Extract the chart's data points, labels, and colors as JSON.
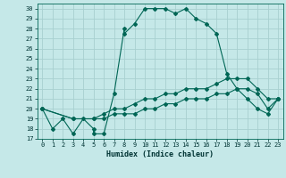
{
  "xlabel": "Humidex (Indice chaleur)",
  "bg_color": "#c5e8e8",
  "grid_color": "#a8d0d0",
  "line_color": "#006655",
  "xlim": [
    -0.5,
    23.5
  ],
  "ylim": [
    17,
    30.5
  ],
  "xticks": [
    0,
    1,
    2,
    3,
    4,
    5,
    6,
    7,
    8,
    9,
    10,
    11,
    12,
    13,
    14,
    15,
    16,
    17,
    18,
    19,
    20,
    21,
    22,
    23
  ],
  "yticks": [
    17,
    18,
    19,
    20,
    21,
    22,
    23,
    24,
    25,
    26,
    27,
    28,
    29,
    30
  ],
  "curve1_x": [
    0,
    1,
    2,
    3,
    4,
    5,
    5,
    6,
    7,
    8,
    8,
    9,
    10,
    11,
    12,
    13,
    14,
    15,
    16,
    17,
    18,
    19,
    20,
    21,
    22,
    23
  ],
  "curve1_y": [
    20,
    18,
    19,
    17.5,
    19,
    18,
    17.5,
    17.5,
    21.5,
    28,
    27.5,
    28.5,
    30,
    30,
    30,
    29.5,
    30,
    29,
    28.5,
    27.5,
    23.5,
    22,
    21,
    20,
    19.5,
    21
  ],
  "curve2_x": [
    0,
    3,
    5,
    6,
    7,
    8,
    9,
    10,
    11,
    12,
    13,
    14,
    15,
    16,
    17,
    18,
    19,
    20,
    21,
    22,
    23
  ],
  "curve2_y": [
    20,
    19,
    19,
    19.5,
    20,
    20,
    20.5,
    21,
    21,
    21.5,
    21.5,
    22,
    22,
    22,
    22.5,
    23,
    23,
    23,
    22,
    21,
    21
  ],
  "curve3_x": [
    0,
    3,
    5,
    6,
    7,
    8,
    9,
    10,
    11,
    12,
    13,
    14,
    15,
    16,
    17,
    18,
    19,
    20,
    21,
    22,
    23
  ],
  "curve3_y": [
    20,
    19,
    19,
    19,
    19.5,
    19.5,
    19.5,
    20,
    20,
    20.5,
    20.5,
    21,
    21,
    21,
    21.5,
    21.5,
    22,
    22,
    21.5,
    20,
    21
  ]
}
